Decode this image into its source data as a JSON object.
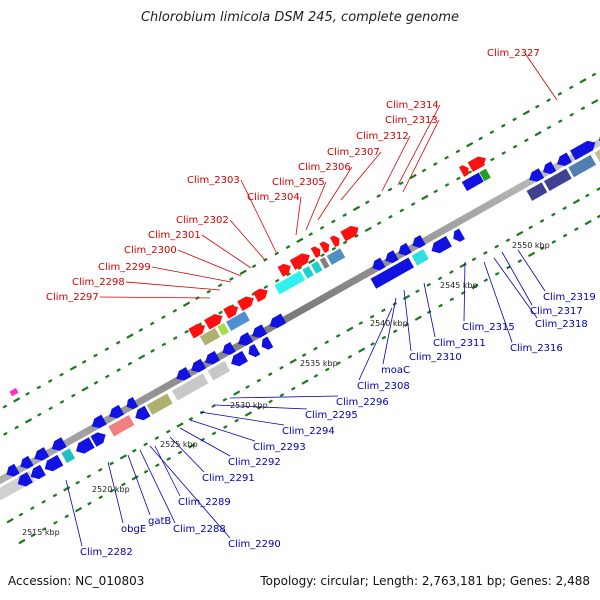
{
  "title": "Chlorobium limicola DSM 245, complete genome",
  "accession": "Accession: NC_010803",
  "summary": "Topology: circular; Length: 2,763,181 bp; Genes: 2,488",
  "colors": {
    "blue_gene": "#1212e0",
    "red_gene": "#ff1010",
    "backbone": "#8a8a8a",
    "tick": "#1a7a1a",
    "label_red": "#d40000",
    "label_blue": "#0000b0"
  },
  "kbp_ticks": [
    "2515 kbp",
    "2520 kbp",
    "2525 kbp",
    "2530 kbp",
    "2535 kbp",
    "2540 kbp",
    "2545 kbp",
    "2550 kbp"
  ],
  "labels_upper": [
    "Clim_2327",
    "Clim_2314",
    "Clim_2313",
    "Clim_2312",
    "Clim_2307",
    "Clim_2306",
    "Clim_2305",
    "Clim_2304",
    "Clim_2303",
    "Clim_2302",
    "Clim_2301",
    "Clim_2300",
    "Clim_2299",
    "Clim_2298",
    "Clim_2297"
  ],
  "labels_lower": [
    "Clim_2319",
    "Clim_2317",
    "Clim_2318",
    "Clim_2315",
    "Clim_2316",
    "Clim_2311",
    "Clim_2310",
    "moaC",
    "Clim_2308",
    "Clim_2296",
    "Clim_2295",
    "Clim_2294",
    "Clim_2293",
    "Clim_2292",
    "Clim_2291",
    "Clim_2289",
    "Clim_2288",
    "Clim_2290",
    "gatB",
    "obgE",
    "Clim_2282"
  ]
}
